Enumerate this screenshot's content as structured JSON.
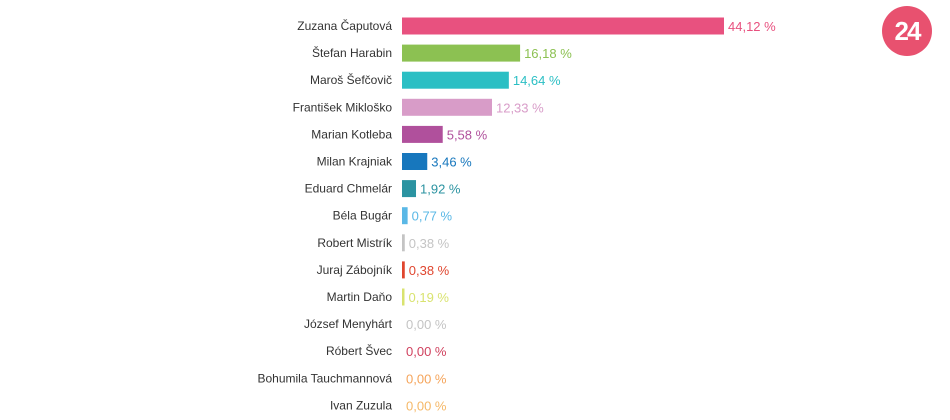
{
  "logo": {
    "text": "24",
    "color": "#e8516f"
  },
  "chart_data": {
    "type": "bar",
    "orientation": "horizontal",
    "xlim": [
      0,
      44.12
    ],
    "grid": false,
    "categories": [
      "Zuzana Čaputová",
      "Štefan Harabin",
      "Maroš Šefčovič",
      "František Mikloško",
      "Marian Kotleba",
      "Milan Krajniak",
      "Eduard Chmelár",
      "Béla Bugár",
      "Robert Mistrík",
      "Juraj Zábojník",
      "Martin Daňo",
      "József Menyhárt",
      "Róbert Švec",
      "Bohumila Tauchmannová",
      "Ivan Zuzula"
    ],
    "values": [
      44.12,
      16.18,
      14.64,
      12.33,
      5.58,
      3.46,
      1.92,
      0.77,
      0.38,
      0.38,
      0.19,
      0.0,
      0.0,
      0.0,
      0.0
    ],
    "value_labels": [
      "44,12 %",
      "16,18 %",
      "14,64 %",
      "12,33 %",
      "5,58 %",
      "3,46 %",
      "1,92 %",
      "0,77 %",
      "0,38 %",
      "0,38 %",
      "0,19 %",
      "0,00 %",
      "0,00 %",
      "0,00 %",
      "0,00 %"
    ],
    "colors": [
      "#e8517f",
      "#8cc152",
      "#2bbfc4",
      "#d89cc8",
      "#b0509c",
      "#1777bd",
      "#2b93a1",
      "#5ab8e6",
      "#c4c4c4",
      "#e0462f",
      "#d9e36f",
      "#c4c4c4",
      "#d0425f",
      "#f5a45a",
      "#f5b867"
    ]
  }
}
